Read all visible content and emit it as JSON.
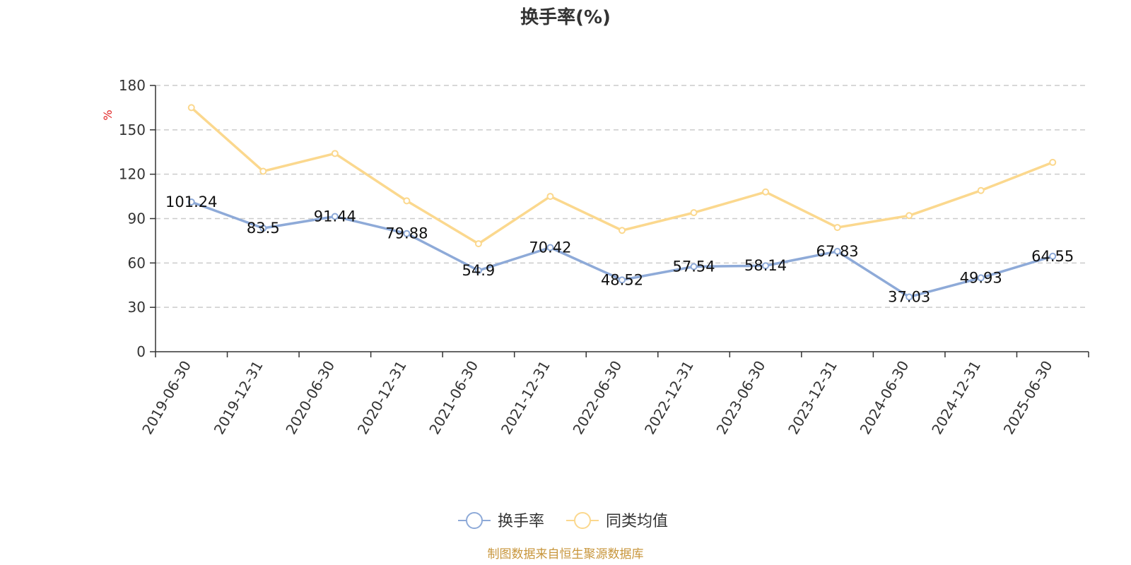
{
  "chart_data": {
    "type": "line",
    "title": "换手率(%)",
    "ylabel": "%",
    "ylim": [
      0,
      180
    ],
    "yticks": [
      0,
      30,
      60,
      90,
      120,
      150,
      180
    ],
    "grid": true,
    "legend_position": "bottom",
    "categories": [
      "2019-06-30",
      "2019-12-31",
      "2020-06-30",
      "2020-12-31",
      "2021-06-30",
      "2021-12-31",
      "2022-06-30",
      "2022-12-31",
      "2023-06-30",
      "2023-12-31",
      "2024-06-30",
      "2024-12-31",
      "2025-06-30"
    ],
    "series": [
      {
        "name": "换手率",
        "color": "#8eaad8",
        "show_labels": true,
        "values": [
          101.24,
          83.5,
          91.44,
          79.88,
          54.9,
          70.42,
          48.52,
          57.54,
          58.14,
          67.83,
          37.03,
          49.93,
          64.55
        ]
      },
      {
        "name": "同类均值",
        "color": "#fbd88e",
        "show_labels": false,
        "values": [
          165,
          122,
          134,
          102,
          73,
          105,
          82,
          94,
          108,
          84,
          92,
          109,
          128
        ]
      }
    ]
  },
  "source_note": "制图数据来自恒生聚源数据库",
  "colors": {
    "axis": "#333333",
    "grid": "#cccccc",
    "unit": "#e02020",
    "source": "#c8963c"
  }
}
